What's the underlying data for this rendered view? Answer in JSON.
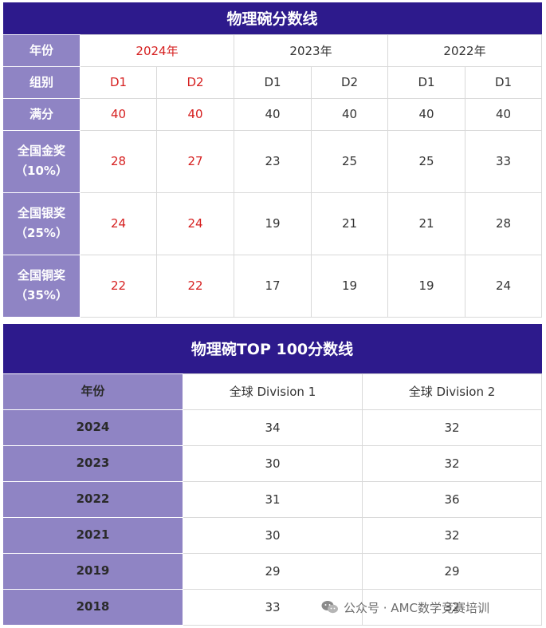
{
  "table1": {
    "title": "物理碗分数线",
    "row_labels": {
      "year": "年份",
      "group": "组别",
      "full": "满分",
      "gold": [
        "全国金奖",
        "（10%）"
      ],
      "silver": [
        "全国银奖",
        "（25%）"
      ],
      "bronze": [
        "全国铜奖",
        "（35%）"
      ]
    },
    "years": [
      "2024年",
      "2023年",
      "2022年"
    ],
    "groups": [
      "D1",
      "D2",
      "D1",
      "D2",
      "D1",
      "D1"
    ],
    "full": [
      "40",
      "40",
      "40",
      "40",
      "40",
      "40"
    ],
    "gold": [
      "28",
      "27",
      "23",
      "25",
      "25",
      "33"
    ],
    "silver": [
      "24",
      "24",
      "19",
      "21",
      "21",
      "28"
    ],
    "bronze": [
      "22",
      "22",
      "17",
      "19",
      "19",
      "24"
    ],
    "highlight_color": "#d62020"
  },
  "table2": {
    "title": "物理碗TOP 100分数线",
    "headers": [
      "年份",
      "全球 Division 1",
      "全球 Division 2"
    ],
    "rows": [
      {
        "year": "2024",
        "d1": "34",
        "d2": "32"
      },
      {
        "year": "2023",
        "d1": "30",
        "d2": "32"
      },
      {
        "year": "2022",
        "d1": "31",
        "d2": "36"
      },
      {
        "year": "2021",
        "d1": "30",
        "d2": "32"
      },
      {
        "year": "2019",
        "d1": "29",
        "d2": "29"
      },
      {
        "year": "2018",
        "d1": "33",
        "d2": "32"
      }
    ]
  },
  "watermark": {
    "text": "公众号 · AMC数学竞赛培训",
    "icon": "wechat-icon"
  },
  "colors": {
    "title_bg": "#2d1a8c",
    "row_header_bg": "#8f84c4"
  }
}
